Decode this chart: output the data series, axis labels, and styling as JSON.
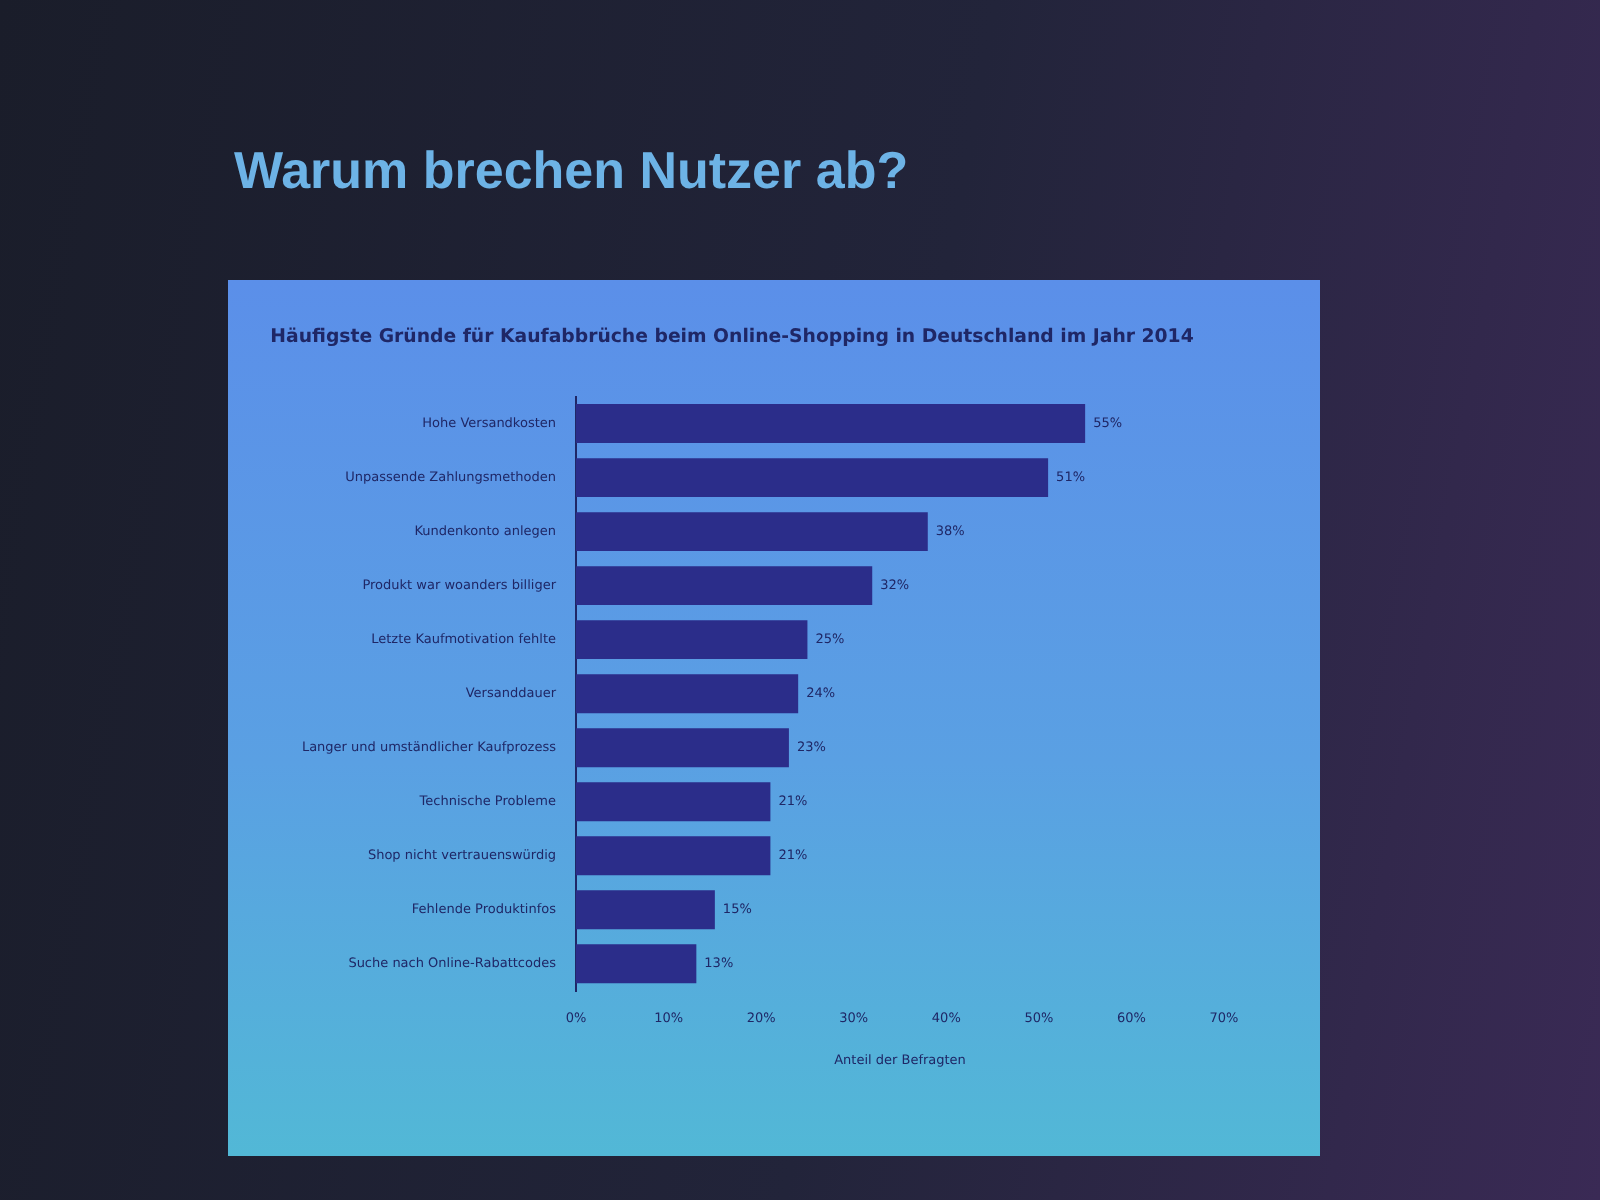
{
  "chart_data": {
    "type": "bar",
    "orientation": "horizontal",
    "title": "Warum brechen Nutzer ab?",
    "subtitle": "Häufigste Gründe für Kaufabbrüche beim Online-Shopping in Deutschland im Jahr 2014",
    "xlabel": "Anteil der Befragten",
    "categories": [
      "Hohe Versandkosten",
      "Unpassende Zahlungsmethoden",
      "Kundenkonto anlegen",
      "Produkt war woanders billiger",
      "Letzte Kaufmotivation fehlte",
      "Versanddauer",
      "Langer und umständlicher Kaufprozess",
      "Technische Probleme",
      "Shop nicht vertrauenswürdig",
      "Fehlende Produktinfos",
      "Suche nach Online-Rabattcodes"
    ],
    "values": [
      55,
      51,
      38,
      32,
      25,
      24,
      23,
      21,
      21,
      15,
      13
    ],
    "value_labels": [
      "55%",
      "51%",
      "38%",
      "32%",
      "25%",
      "24%",
      "23%",
      "21%",
      "21%",
      "15%",
      "13%"
    ],
    "color": "#2b2d8a",
    "xlim": [
      0,
      70
    ],
    "xticks": [
      {
        "value": 0,
        "label": "0%"
      },
      {
        "value": 10,
        "label": "10%"
      },
      {
        "value": 20,
        "label": "20%"
      },
      {
        "value": 30,
        "label": "30%"
      },
      {
        "value": 40,
        "label": "40%"
      },
      {
        "value": 50,
        "label": "50%"
      },
      {
        "value": 60,
        "label": "60%"
      },
      {
        "value": 70,
        "label": "70%"
      }
    ],
    "grid": false
  }
}
